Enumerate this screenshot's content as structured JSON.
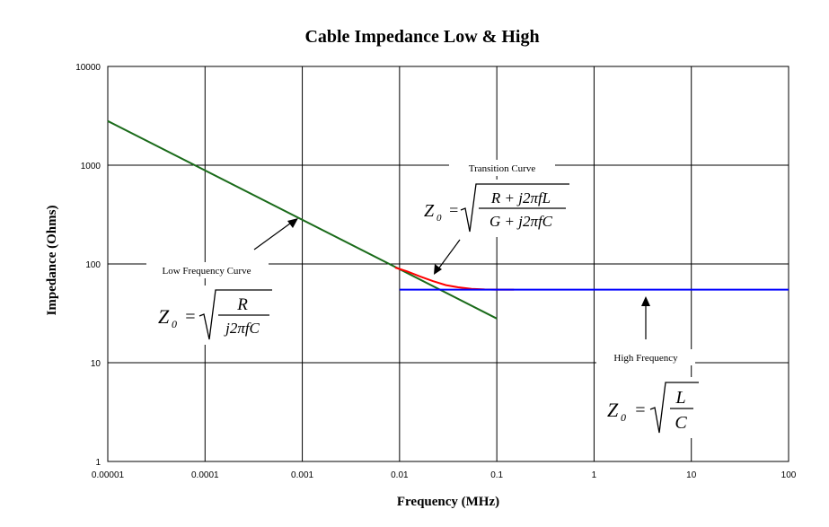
{
  "chart_data": {
    "type": "line",
    "title": "Cable Impedance Low & High",
    "xlabel": "Frequency (MHz)",
    "ylabel": "Impedance (Ohms)",
    "x_scale": "log",
    "y_scale": "log",
    "xlim": [
      1e-05,
      100
    ],
    "ylim": [
      1,
      10000
    ],
    "x_ticks": [
      "0.00001",
      "0.0001",
      "0.001",
      "0.01",
      "0.1",
      "1",
      "10",
      "100"
    ],
    "y_ticks": [
      "1",
      "10",
      "100",
      "1000",
      "10000"
    ],
    "grid": true,
    "series": [
      {
        "color": "#1a6b1a",
        "x": [
          1e-05,
          0.1
        ],
        "y": [
          2800,
          28
        ]
      },
      {
        "color": "#ff0000",
        "x": [
          0.009,
          0.012,
          0.016,
          0.022,
          0.03,
          0.04,
          0.055,
          0.075,
          0.1,
          0.15
        ],
        "y": [
          92,
          84,
          75,
          67,
          61,
          58,
          56,
          55.2,
          55,
          55
        ]
      },
      {
        "color": "#0000ff",
        "x": [
          0.01,
          100
        ],
        "y": [
          55,
          55
        ]
      }
    ],
    "annotations": [
      {
        "name": "low",
        "label": "Low Frequency Curve",
        "formula": {
          "lhs": "Z",
          "sub": "0",
          "num": "R",
          "den": "j2πfC"
        }
      },
      {
        "name": "transition",
        "label": "Transition Curve",
        "formula": {
          "lhs": "Z",
          "sub": "0",
          "num": "R + j2πfL",
          "den": "G + j2πfC"
        }
      },
      {
        "name": "high",
        "label": "High Frequency",
        "formula": {
          "lhs": "Z",
          "sub": "0",
          "num": "L",
          "den": "C"
        }
      }
    ]
  }
}
